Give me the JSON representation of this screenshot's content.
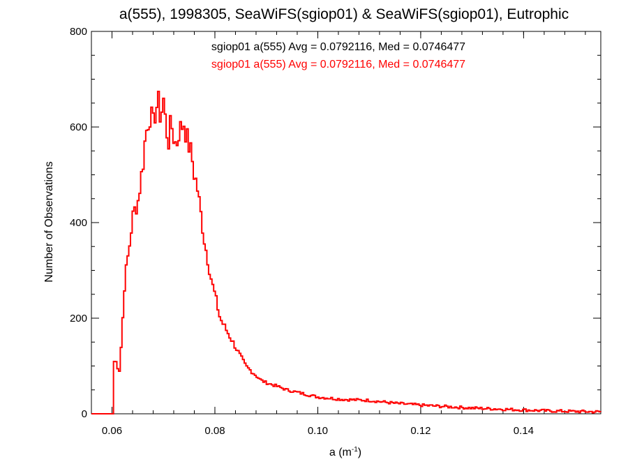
{
  "chart_data": {
    "type": "histogram",
    "title": "a(555), 1998305, SeaWiFS(sgiop01) & SeaWiFS(sgiop01), Eutrophic",
    "xlabel": "a (m",
    "xlabel_sup": "-1",
    "xlabel_close": ")",
    "ylabel": "Number of Observations",
    "xlim": [
      0.056,
      0.155
    ],
    "ylim": [
      0,
      800
    ],
    "xticks": [
      0.06,
      0.08,
      0.1,
      0.12,
      0.14
    ],
    "xtick_labels": [
      "0.06",
      "0.08",
      "0.10",
      "0.12",
      "0.14"
    ],
    "yticks": [
      0,
      200,
      400,
      600,
      800
    ],
    "ytick_labels": [
      "0",
      "200",
      "400",
      "600",
      "800"
    ],
    "grid": false,
    "annotations": [
      {
        "text": "sgiop01 a(555) Avg = 0.0792116, Med = 0.0746477",
        "color": "#000000"
      },
      {
        "text": "sgiop01 a(555) Avg = 0.0792116, Med = 0.0746477",
        "color": "#ff0000"
      }
    ],
    "series": [
      {
        "name": "sgiop01",
        "color": "#ff0000",
        "bin_width": 0.00033,
        "x": [
          0.056,
          0.06,
          0.0605,
          0.061,
          0.0615,
          0.062,
          0.0625,
          0.063,
          0.0635,
          0.064,
          0.0645,
          0.065,
          0.0655,
          0.066,
          0.0665,
          0.067,
          0.0675,
          0.068,
          0.0685,
          0.069,
          0.0695,
          0.07,
          0.0705,
          0.071,
          0.0715,
          0.072,
          0.0725,
          0.073,
          0.0735,
          0.074,
          0.0745,
          0.075,
          0.0755,
          0.076,
          0.0765,
          0.077,
          0.0775,
          0.078,
          0.0785,
          0.079,
          0.0795,
          0.08,
          0.081,
          0.082,
          0.083,
          0.084,
          0.085,
          0.086,
          0.087,
          0.088,
          0.089,
          0.09,
          0.092,
          0.094,
          0.096,
          0.098,
          0.1,
          0.105,
          0.11,
          0.115,
          0.12,
          0.125,
          0.13,
          0.135,
          0.14,
          0.145,
          0.15,
          0.155
        ],
        "y": [
          0,
          5,
          120,
          100,
          90,
          180,
          280,
          320,
          360,
          410,
          430,
          440,
          480,
          520,
          580,
          610,
          630,
          600,
          640,
          650,
          620,
          660,
          600,
          570,
          610,
          580,
          560,
          590,
          600,
          610,
          580,
          560,
          540,
          500,
          480,
          440,
          400,
          360,
          330,
          300,
          270,
          250,
          200,
          180,
          160,
          140,
          120,
          100,
          90,
          80,
          70,
          65,
          58,
          50,
          45,
          40,
          35,
          30,
          28,
          22,
          18,
          15,
          12,
          10,
          8,
          6,
          5,
          4
        ]
      }
    ]
  }
}
